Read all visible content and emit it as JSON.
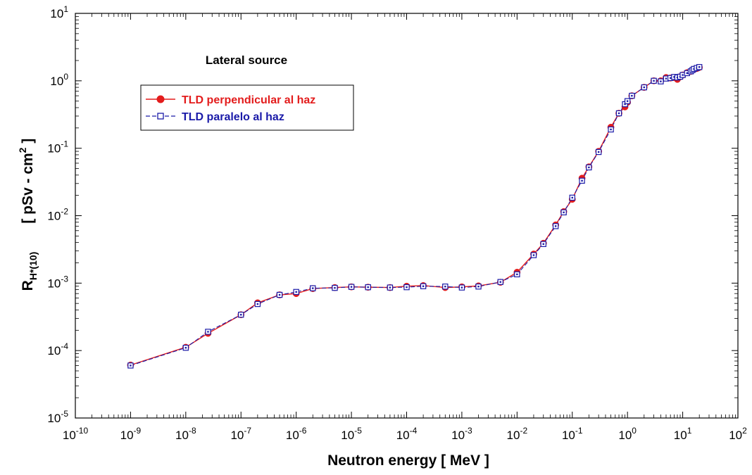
{
  "chart_data": {
    "type": "line",
    "xscale": "log",
    "yscale": "log",
    "xlim": [
      1e-10,
      100
    ],
    "ylim": [
      1e-05,
      10
    ],
    "grid": false,
    "legend_position": "top-left",
    "xlabel": "Neutron energy     [   MeV   ]",
    "ylabel_main": "R",
    "ylabel_sub": "H*(10)",
    "ylabel_unit_open": "[    pSv - cm",
    "ylabel_unit_sup": "2",
    "ylabel_unit_close": "  ]",
    "annotation": "Lateral source",
    "x_ticks": [
      {
        "base": "10",
        "exp": "-10",
        "value": 1e-10
      },
      {
        "base": "10",
        "exp": "-9",
        "value": 1e-09
      },
      {
        "base": "10",
        "exp": "-8",
        "value": 1e-08
      },
      {
        "base": "10",
        "exp": "-7",
        "value": 1e-07
      },
      {
        "base": "10",
        "exp": "-6",
        "value": 1e-06
      },
      {
        "base": "10",
        "exp": "-5",
        "value": 1e-05
      },
      {
        "base": "10",
        "exp": "-4",
        "value": 0.0001
      },
      {
        "base": "10",
        "exp": "-3",
        "value": 0.001
      },
      {
        "base": "10",
        "exp": "-2",
        "value": 0.01
      },
      {
        "base": "10",
        "exp": "-1",
        "value": 0.1
      },
      {
        "base": "10",
        "exp": "0",
        "value": 1
      },
      {
        "base": "10",
        "exp": "1",
        "value": 10
      },
      {
        "base": "10",
        "exp": "2",
        "value": 100
      }
    ],
    "y_ticks": [
      {
        "base": "10",
        "exp": "-5",
        "value": 1e-05
      },
      {
        "base": "10",
        "exp": "-4",
        "value": 0.0001
      },
      {
        "base": "10",
        "exp": "-3",
        "value": 0.001
      },
      {
        "base": "10",
        "exp": "-2",
        "value": 0.01
      },
      {
        "base": "10",
        "exp": "-1",
        "value": 0.1
      },
      {
        "base": "10",
        "exp": "0",
        "value": 1
      },
      {
        "base": "10",
        "exp": "1",
        "value": 10
      }
    ],
    "x": [
      1e-09,
      1e-08,
      2.53e-08,
      1e-07,
      2e-07,
      5e-07,
      1e-06,
      2e-06,
      5e-06,
      1e-05,
      2e-05,
      5e-05,
      0.0001,
      0.0002,
      0.0005,
      0.001,
      0.002,
      0.005,
      0.01,
      0.02,
      0.03,
      0.05,
      0.07,
      0.1,
      0.15,
      0.2,
      0.3,
      0.5,
      0.7,
      0.9,
      1.0,
      1.2,
      2.0,
      3.0,
      4.0,
      5.0,
      6.0,
      7.0,
      8.0,
      9.0,
      10.0,
      12.0,
      14.0,
      15.0,
      16.0,
      18.0,
      20.0
    ],
    "series": [
      {
        "name": "TLD perpendicular al haz",
        "color": "#e31c1c",
        "marker": "filled-circle",
        "line": "solid",
        "values": [
          6.1e-05,
          0.000112,
          0.00018,
          0.00034,
          0.00051,
          0.00067,
          0.0007,
          0.00083,
          0.00086,
          0.00088,
          0.00087,
          0.00086,
          0.0009,
          0.00092,
          0.00086,
          0.00088,
          0.00091,
          0.00103,
          0.00145,
          0.0027,
          0.0039,
          0.0073,
          0.0115,
          0.0175,
          0.036,
          0.053,
          0.09,
          0.205,
          0.33,
          0.41,
          0.48,
          0.6,
          0.8,
          1.0,
          1.0,
          1.12,
          1.1,
          1.12,
          1.05,
          1.15,
          1.22,
          1.32,
          1.38,
          1.44,
          1.48,
          1.52,
          1.58
        ]
      },
      {
        "name": "TLD paralelo al haz",
        "color": "#1a1aa8",
        "marker": "open-square",
        "line": "dashed",
        "values": [
          6e-05,
          0.00011,
          0.00019,
          0.00034,
          0.00049,
          0.00067,
          0.00074,
          0.00084,
          0.00085,
          0.00088,
          0.00087,
          0.00086,
          0.00087,
          0.0009,
          0.00089,
          0.00086,
          0.00089,
          0.00104,
          0.00135,
          0.0026,
          0.0038,
          0.007,
          0.0112,
          0.0185,
          0.033,
          0.052,
          0.088,
          0.19,
          0.33,
          0.45,
          0.5,
          0.6,
          0.8,
          1.0,
          0.98,
          1.08,
          1.1,
          1.14,
          1.12,
          1.15,
          1.22,
          1.3,
          1.38,
          1.44,
          1.5,
          1.55,
          1.6
        ]
      }
    ]
  }
}
